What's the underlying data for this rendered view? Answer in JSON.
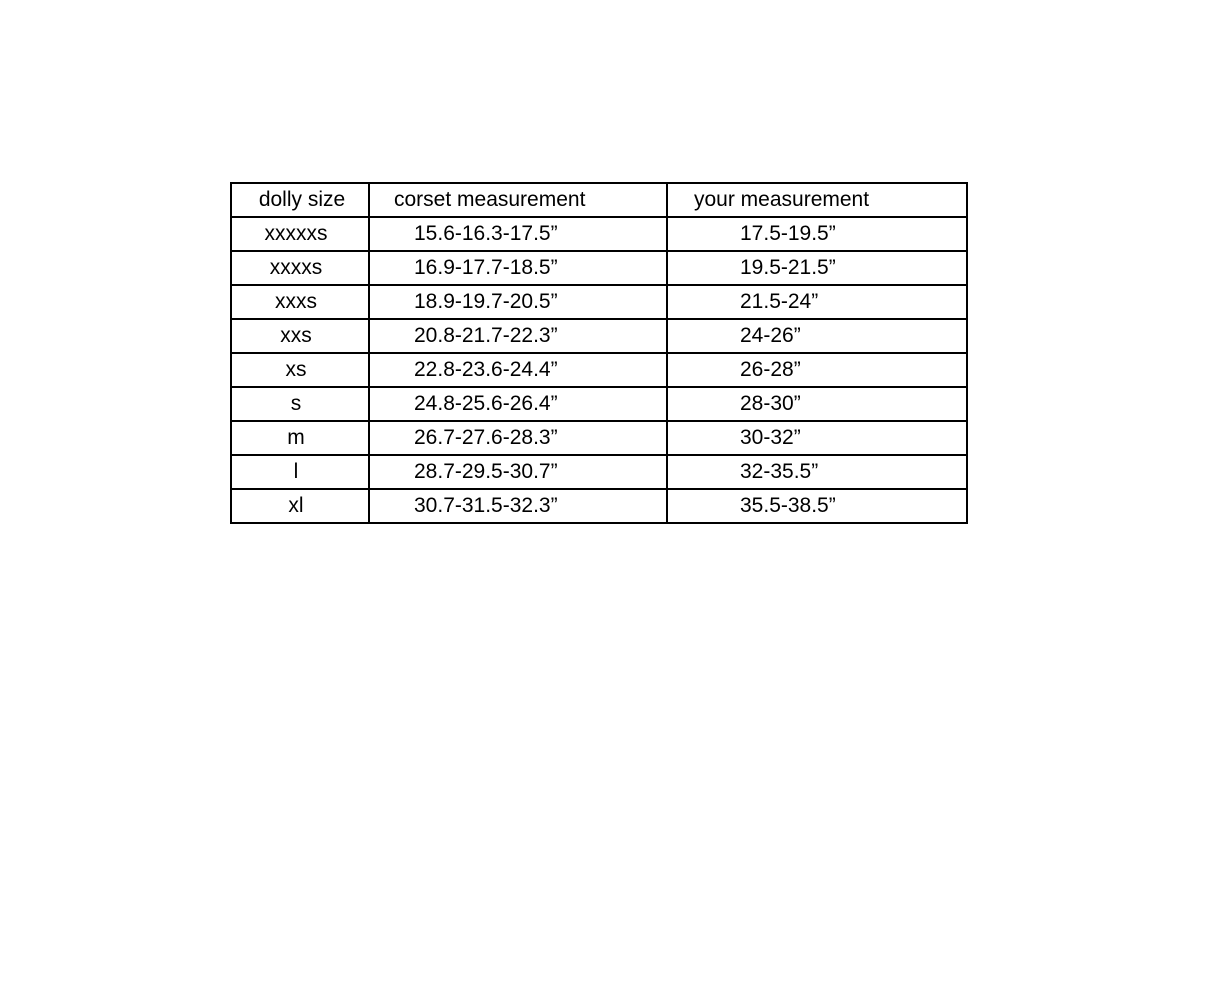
{
  "table": {
    "headers": [
      "dolly size",
      "corset measurement",
      "your measurement"
    ],
    "rows": [
      [
        "xxxxxs",
        "15.6-16.3-17.5”",
        "17.5-19.5”"
      ],
      [
        "xxxxs",
        "16.9-17.7-18.5”",
        "19.5-21.5”"
      ],
      [
        "xxxs",
        "18.9-19.7-20.5”",
        "21.5-24”"
      ],
      [
        "xxs",
        "20.8-21.7-22.3”",
        "24-26”"
      ],
      [
        "xs",
        "22.8-23.6-24.4”",
        "26-28”"
      ],
      [
        "s",
        "24.8-25.6-26.4”",
        "28-30”"
      ],
      [
        "m",
        "26.7-27.6-28.3”",
        "30-32”"
      ],
      [
        "l",
        "28.7-29.5-30.7”",
        "32-35.5”"
      ],
      [
        "xl",
        "30.7-31.5-32.3”",
        "35.5-38.5”"
      ]
    ]
  }
}
